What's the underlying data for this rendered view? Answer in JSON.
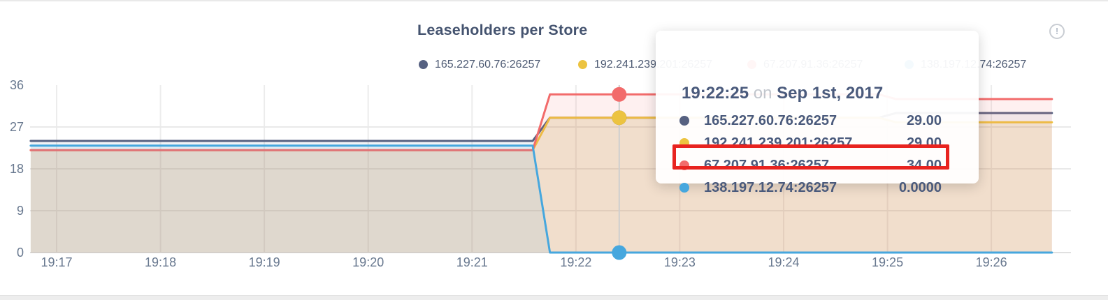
{
  "chart": {
    "title": "Leaseholders per Store"
  },
  "icons": {
    "info": "!"
  },
  "legend": {
    "items": [
      {
        "label": "165.227.60.76:26257",
        "color": "#566181"
      },
      {
        "label": "192.241.239.201:26257",
        "color": "#ecc340"
      },
      {
        "label": "67.207.91.36:26257",
        "color": "#f26b6b"
      },
      {
        "label": "138.197.12.74:26257",
        "color": "#46a7de"
      }
    ]
  },
  "tooltip": {
    "time": "19:22:25",
    "conjunction": "on",
    "date": "Sep 1st, 2017",
    "highlight_color": "#e8231f",
    "rows": [
      {
        "label": "165.227.60.76:26257",
        "value": "29.00",
        "color": "#566181",
        "highlighted": false
      },
      {
        "label": "192.241.239.201:26257",
        "value": "29.00",
        "color": "#ecc340",
        "highlighted": false
      },
      {
        "label": "67.207.91.36:26257",
        "value": "34.00",
        "color": "#f26b6b",
        "highlighted": false
      },
      {
        "label": "138.197.12.74:26257",
        "value": "0.0000",
        "color": "#46a7de",
        "highlighted": true
      }
    ]
  },
  "chart_data": {
    "type": "area",
    "title": "Leaseholders per Store",
    "xlabel": "",
    "ylabel": "",
    "ylim": [
      0,
      36
    ],
    "y_ticks": [
      0,
      9,
      18,
      27,
      36
    ],
    "x_ticks": [
      "19:17",
      "19:18",
      "19:19",
      "19:20",
      "19:21",
      "19:22",
      "19:23",
      "19:24",
      "19:25",
      "19:26"
    ],
    "x_range": [
      "19:16:45",
      "19:26:35"
    ],
    "grid": true,
    "legend_position": "top",
    "hover_time": "19:22:25",
    "hover_date": "Sep 1st, 2017",
    "series": [
      {
        "name": "165.227.60.76:26257",
        "color": "#566181",
        "fill_opacity": 0.08,
        "hover_value": 29,
        "points": [
          [
            "19:16:45",
            24
          ],
          [
            "19:21:35",
            24
          ],
          [
            "19:21:45",
            29
          ],
          [
            "19:24:55",
            29
          ],
          [
            "19:25:05",
            30
          ],
          [
            "19:26:35",
            30
          ]
        ]
      },
      {
        "name": "192.241.239.201:26257",
        "color": "#ecc340",
        "fill_opacity": 0.16,
        "hover_value": 29,
        "points": [
          [
            "19:16:45",
            22
          ],
          [
            "19:21:35",
            22
          ],
          [
            "19:21:45",
            29
          ],
          [
            "19:24:55",
            29
          ],
          [
            "19:25:05",
            28
          ],
          [
            "19:26:35",
            28
          ]
        ]
      },
      {
        "name": "67.207.91.36:26257",
        "color": "#f26b6b",
        "fill_opacity": 0.1,
        "hover_value": 34,
        "points": [
          [
            "19:16:45",
            22
          ],
          [
            "19:21:35",
            22
          ],
          [
            "19:21:45",
            34
          ],
          [
            "19:24:55",
            34
          ],
          [
            "19:25:05",
            33
          ],
          [
            "19:26:35",
            33
          ]
        ]
      },
      {
        "name": "138.197.12.74:26257",
        "color": "#46a7de",
        "fill_opacity": 0.1,
        "hover_value": 0,
        "points": [
          [
            "19:16:45",
            23
          ],
          [
            "19:21:35",
            23
          ],
          [
            "19:21:45",
            0
          ],
          [
            "19:26:35",
            0
          ]
        ]
      }
    ]
  }
}
